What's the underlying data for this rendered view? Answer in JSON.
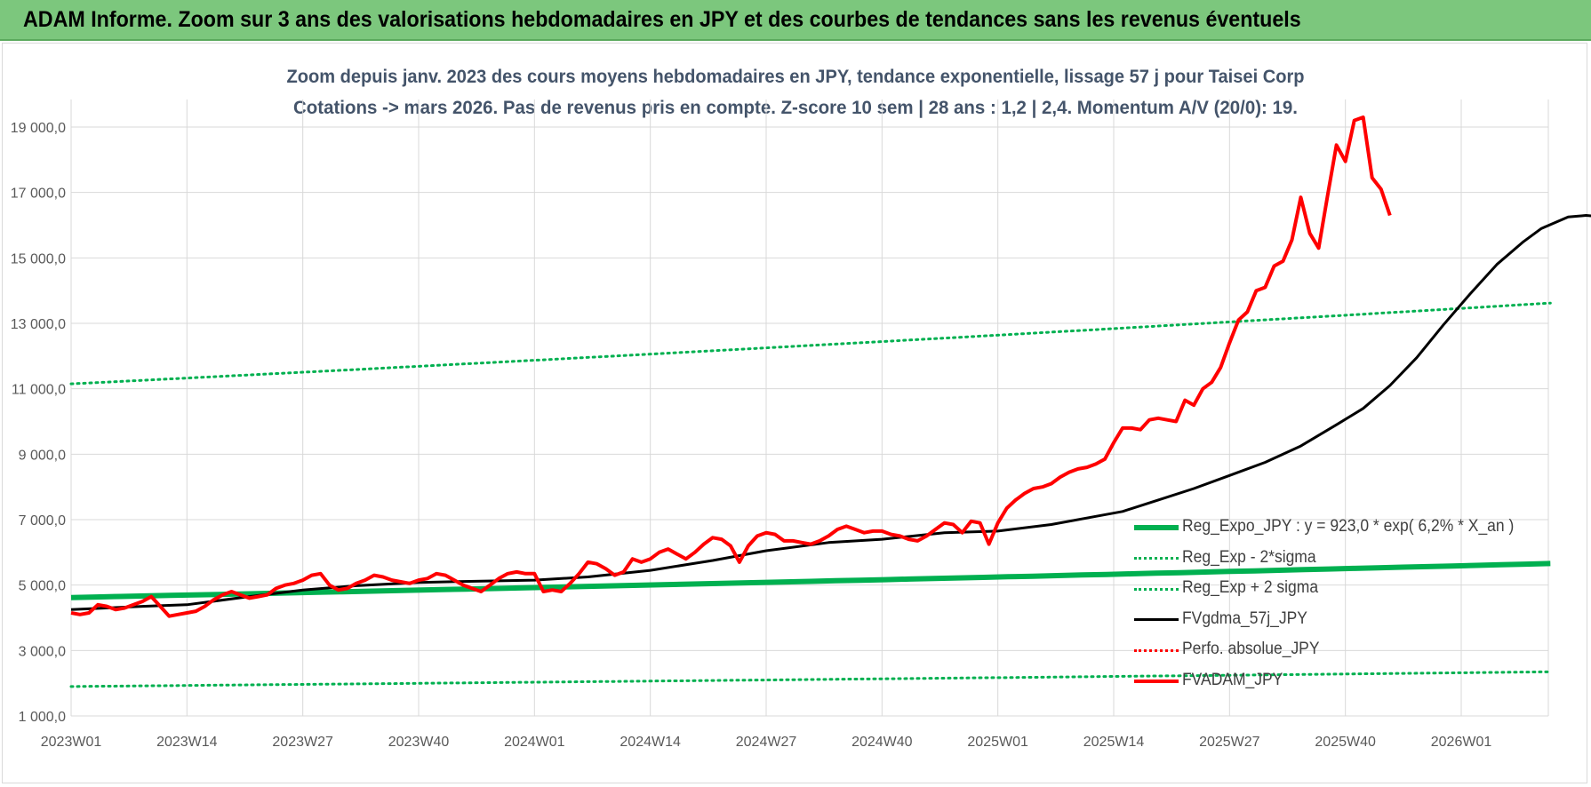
{
  "header": {
    "title": "ADAM Informe. Zoom sur 3 ans des valorisations hebdomadaires en JPY et des courbes de tendances sans les revenus éventuels"
  },
  "chart_data": {
    "type": "line",
    "title_line1": "Zoom depuis janv. 2023 des cours moyens hebdomadaires en JPY, tendance exponentielle, lissage 57 j pour Taisei Corp",
    "title_line2": "Cotations -> mars 2026. Pas de revenus pris en compte. Z-score 10 sem | 28 ans : 1,2 | 2,4. Momentum A/V (20/0): 19.",
    "ylim": [
      1000,
      20000
    ],
    "y_ticks": [
      1000,
      3000,
      5000,
      7000,
      9000,
      11000,
      13000,
      15000,
      17000,
      19000
    ],
    "y_tick_labels": [
      "1 000,0",
      "3 000,0",
      "5 000,0",
      "7 000,0",
      "9 000,0",
      "11 000,0",
      "13 000,0",
      "15 000,0",
      "17 000,0",
      "19 000,0"
    ],
    "x_range_weeks": [
      0,
      166
    ],
    "x_tick_positions": [
      0,
      13,
      26,
      39,
      52,
      65,
      78,
      91,
      104,
      117,
      130,
      143,
      156
    ],
    "x_tick_labels": [
      "2023W01",
      "2023W14",
      "2023W27",
      "2023W40",
      "2024W01",
      "2024W14",
      "2024W27",
      "2024W40",
      "2025W01",
      "2025W14",
      "2025W27",
      "2025W40",
      "2026W01"
    ],
    "grid": true,
    "legend_position": "bottom-right inside plot",
    "series": [
      {
        "name": "Reg_Expo_JPY : y = 923,0 * exp( 6,2% * X_an )",
        "color": "#00b050",
        "style": "thick",
        "points": [
          [
            0,
            4620
          ],
          [
            166,
            5660
          ]
        ],
        "curve": "exp"
      },
      {
        "name": "Reg_Exp - 2*sigma",
        "color": "#00b050",
        "style": "dotted",
        "points": [
          [
            0,
            1900
          ],
          [
            166,
            2350
          ]
        ],
        "curve": "exp"
      },
      {
        "name": "Reg_Exp + 2 sigma",
        "color": "#00b050",
        "style": "dotted",
        "points": [
          [
            0,
            11150
          ],
          [
            166,
            13620
          ]
        ],
        "curve": "exp"
      },
      {
        "name": "FVgdma_57j_JPY",
        "color": "#000000",
        "style": "solid",
        "points": [
          [
            0,
            4250
          ],
          [
            8,
            4350
          ],
          [
            13,
            4400
          ],
          [
            20,
            4650
          ],
          [
            26,
            4850
          ],
          [
            32,
            4980
          ],
          [
            39,
            5080
          ],
          [
            46,
            5120
          ],
          [
            52,
            5150
          ],
          [
            58,
            5250
          ],
          [
            65,
            5450
          ],
          [
            72,
            5750
          ],
          [
            78,
            6050
          ],
          [
            85,
            6300
          ],
          [
            91,
            6400
          ],
          [
            98,
            6600
          ],
          [
            104,
            6650
          ],
          [
            110,
            6850
          ],
          [
            115,
            7100
          ],
          [
            118,
            7250
          ],
          [
            122,
            7600
          ],
          [
            126,
            7950
          ],
          [
            130,
            8350
          ],
          [
            134,
            8750
          ],
          [
            138,
            9250
          ],
          [
            142,
            9900
          ],
          [
            145,
            10400
          ],
          [
            148,
            11100
          ],
          [
            151,
            11950
          ],
          [
            154,
            12950
          ],
          [
            157,
            13900
          ],
          [
            160,
            14800
          ],
          [
            163,
            15500
          ],
          [
            165,
            15900
          ],
          [
            168,
            16250
          ],
          [
            170,
            16300
          ],
          [
            172,
            16250
          ]
        ]
      },
      {
        "name": "Perfo. absolue_JPY",
        "color": "#ff0000",
        "style": "dotted",
        "points": []
      },
      {
        "name": "FVADAM_JPY",
        "color": "#ff0000",
        "style": "thick-solid",
        "points": [
          [
            0,
            4150
          ],
          [
            1,
            4100
          ],
          [
            2,
            4150
          ],
          [
            3,
            4400
          ],
          [
            4,
            4350
          ],
          [
            5,
            4250
          ],
          [
            6,
            4300
          ],
          [
            7,
            4400
          ],
          [
            8,
            4500
          ],
          [
            9,
            4650
          ],
          [
            10,
            4350
          ],
          [
            11,
            4050
          ],
          [
            12,
            4100
          ],
          [
            13,
            4150
          ],
          [
            14,
            4200
          ],
          [
            15,
            4350
          ],
          [
            16,
            4550
          ],
          [
            17,
            4700
          ],
          [
            18,
            4800
          ],
          [
            19,
            4700
          ],
          [
            20,
            4600
          ],
          [
            21,
            4650
          ],
          [
            22,
            4700
          ],
          [
            23,
            4900
          ],
          [
            24,
            5000
          ],
          [
            25,
            5050
          ],
          [
            26,
            5150
          ],
          [
            27,
            5300
          ],
          [
            28,
            5350
          ],
          [
            29,
            5000
          ],
          [
            30,
            4850
          ],
          [
            31,
            4900
          ],
          [
            32,
            5050
          ],
          [
            33,
            5150
          ],
          [
            34,
            5300
          ],
          [
            35,
            5250
          ],
          [
            36,
            5150
          ],
          [
            37,
            5100
          ],
          [
            38,
            5050
          ],
          [
            39,
            5150
          ],
          [
            40,
            5200
          ],
          [
            41,
            5350
          ],
          [
            42,
            5300
          ],
          [
            43,
            5150
          ],
          [
            44,
            5000
          ],
          [
            45,
            4900
          ],
          [
            46,
            4800
          ],
          [
            47,
            5000
          ],
          [
            48,
            5200
          ],
          [
            49,
            5350
          ],
          [
            50,
            5400
          ],
          [
            51,
            5350
          ],
          [
            52,
            5350
          ],
          [
            53,
            4800
          ],
          [
            54,
            4850
          ],
          [
            55,
            4800
          ],
          [
            56,
            5050
          ],
          [
            57,
            5350
          ],
          [
            58,
            5700
          ],
          [
            59,
            5650
          ],
          [
            60,
            5500
          ],
          [
            61,
            5300
          ],
          [
            62,
            5400
          ],
          [
            63,
            5800
          ],
          [
            64,
            5700
          ],
          [
            65,
            5800
          ],
          [
            66,
            6000
          ],
          [
            67,
            6100
          ],
          [
            68,
            5950
          ],
          [
            69,
            5800
          ],
          [
            70,
            6000
          ],
          [
            71,
            6250
          ],
          [
            72,
            6450
          ],
          [
            73,
            6400
          ],
          [
            74,
            6200
          ],
          [
            75,
            5700
          ],
          [
            76,
            6200
          ],
          [
            77,
            6500
          ],
          [
            78,
            6600
          ],
          [
            79,
            6550
          ],
          [
            80,
            6350
          ],
          [
            81,
            6350
          ],
          [
            82,
            6300
          ],
          [
            83,
            6250
          ],
          [
            84,
            6350
          ],
          [
            85,
            6500
          ],
          [
            86,
            6700
          ],
          [
            87,
            6800
          ],
          [
            88,
            6700
          ],
          [
            89,
            6600
          ],
          [
            90,
            6650
          ],
          [
            91,
            6650
          ],
          [
            92,
            6550
          ],
          [
            93,
            6500
          ],
          [
            94,
            6400
          ],
          [
            95,
            6350
          ],
          [
            96,
            6500
          ],
          [
            97,
            6700
          ],
          [
            98,
            6900
          ],
          [
            99,
            6850
          ],
          [
            100,
            6600
          ],
          [
            101,
            6950
          ],
          [
            102,
            6900
          ],
          [
            103,
            6250
          ],
          [
            104,
            6900
          ],
          [
            105,
            7350
          ],
          [
            106,
            7600
          ],
          [
            107,
            7800
          ],
          [
            108,
            7950
          ],
          [
            109,
            8000
          ],
          [
            110,
            8100
          ],
          [
            111,
            8300
          ],
          [
            112,
            8450
          ],
          [
            113,
            8550
          ],
          [
            114,
            8600
          ],
          [
            115,
            8700
          ],
          [
            116,
            8850
          ],
          [
            117,
            9350
          ],
          [
            118,
            9800
          ],
          [
            119,
            9800
          ],
          [
            120,
            9750
          ],
          [
            121,
            10050
          ],
          [
            122,
            10100
          ],
          [
            123,
            10050
          ],
          [
            124,
            10000
          ],
          [
            125,
            10650
          ],
          [
            126,
            10500
          ],
          [
            127,
            11000
          ],
          [
            128,
            11200
          ],
          [
            129,
            11650
          ],
          [
            130,
            12400
          ],
          [
            131,
            13100
          ],
          [
            132,
            13350
          ],
          [
            133,
            14000
          ],
          [
            134,
            14100
          ],
          [
            135,
            14750
          ],
          [
            136,
            14900
          ],
          [
            137,
            15550
          ],
          [
            138,
            16850
          ],
          [
            139,
            15750
          ],
          [
            140,
            15300
          ],
          [
            141,
            16900
          ],
          [
            142,
            18450
          ],
          [
            143,
            17950
          ],
          [
            144,
            19200
          ],
          [
            145,
            19300
          ],
          [
            146,
            17450
          ],
          [
            147,
            17100
          ],
          [
            148,
            16300
          ]
        ]
      }
    ]
  }
}
